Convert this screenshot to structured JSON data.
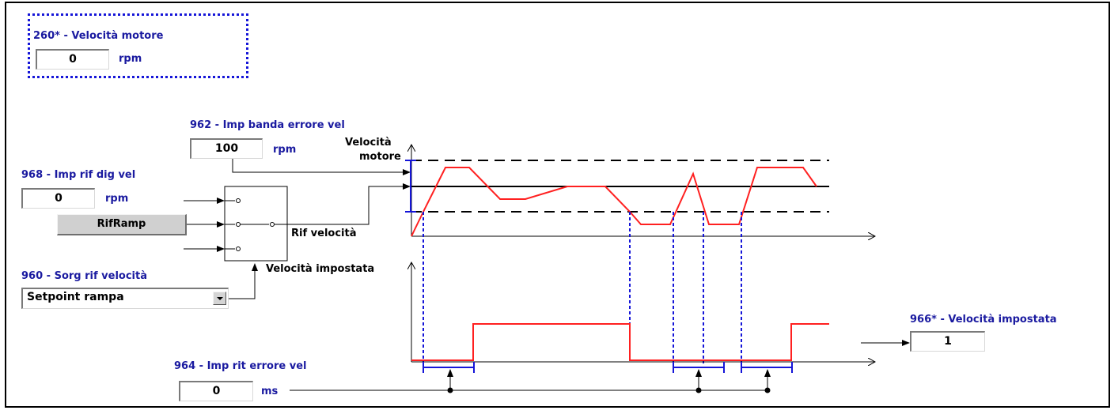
{
  "params": {
    "p260": {
      "label": "260* - Velocità motore",
      "value": "0",
      "unit": "rpm"
    },
    "p962": {
      "label": "962 - Imp banda errore vel",
      "value": "100",
      "unit": "rpm"
    },
    "p968": {
      "label": "968 - Imp rif dig vel",
      "value": "0",
      "unit": "rpm"
    },
    "p960": {
      "label": "960 - Sorg rif velocità",
      "value": "Setpoint rampa"
    },
    "p964": {
      "label": "964 - Imp rit errore vel",
      "value": "0",
      "unit": "ms"
    },
    "p966": {
      "label": "966* - Velocità impostata",
      "value": "1"
    }
  },
  "button": {
    "label": "RifRamp"
  },
  "diagram": {
    "velocita_motore_line1": "Velocità",
    "velocita_motore_line2": "motore",
    "rif_velocita": "Rif velocità",
    "velocita_impostata": "Velocità impostata"
  },
  "colors": {
    "label_blue": "#1a1aa0",
    "signal_red": "#ff2020",
    "marker_blue": "#1515d8"
  }
}
